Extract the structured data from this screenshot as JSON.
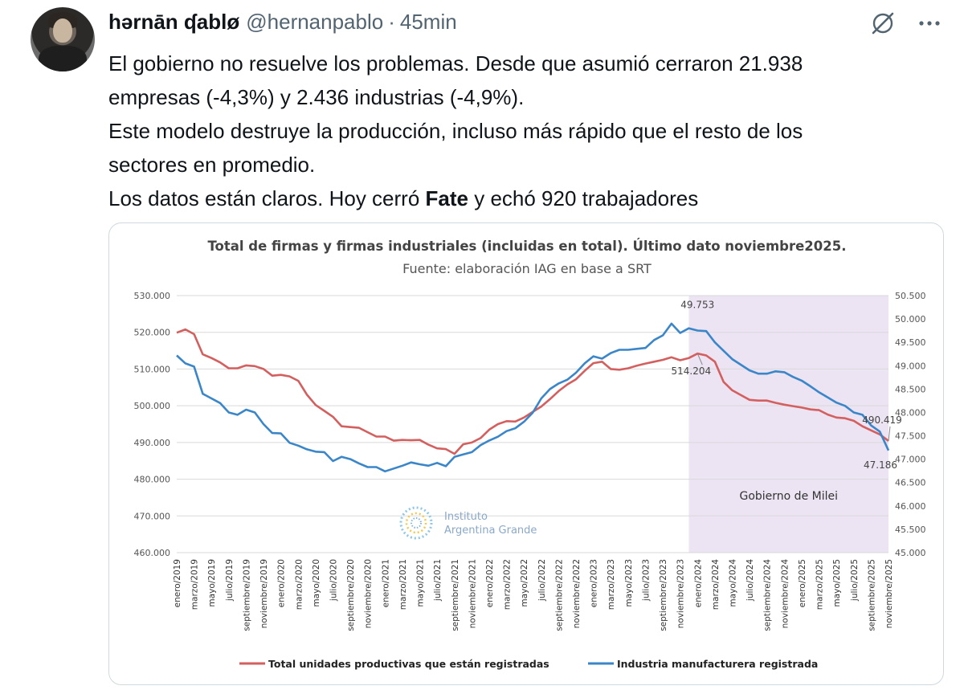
{
  "tweet": {
    "author_name": "hərnān ʠablø",
    "handle": "@hernanpablo",
    "separator": "·",
    "time": "45min",
    "text_lines": [
      "El gobierno no resuelve los problemas. Desde que asumió cerraron 21.938",
      "empresas (-4,3%) y 2.436 industrias (-4,9%).",
      "Este modelo destruye la producción, incluso más rápido que el resto de los",
      "sectores en promedio."
    ],
    "last_line_before": "Los datos están claros. Hoy cerró ",
    "last_line_bold": "Fate",
    "last_line_after": " y echó 920 trabajadores"
  },
  "icons": {
    "grok": "grok-slash-icon",
    "more": "more-dots-icon",
    "avatar": "avatar"
  },
  "colors": {
    "red_series": "#d35f5f",
    "blue_series": "#3a86c8",
    "shade": "#ece3f3",
    "grid": "#d9d9d9"
  },
  "chart_data": {
    "type": "line",
    "title": "Total de firmas y firmas industriales (incluidas en total). Último dato noviembre2025.",
    "subtitle": "Fuente: elaboración IAG en base a SRT",
    "watermark_line1": "Instituto",
    "watermark_line2": "Argentina Grande",
    "shaded_region_label": "Gobierno de Milei",
    "shaded_from_index": 59,
    "y_left": {
      "min": 460000,
      "max": 530000,
      "ticks": [
        "460.000",
        "470.000",
        "480.000",
        "490.000",
        "500.000",
        "510.000",
        "520.000",
        "530.000"
      ]
    },
    "y_right": {
      "min": 45000,
      "max": 50500,
      "ticks": [
        "45.000",
        "45.500",
        "46.000",
        "46.500",
        "47.000",
        "47.500",
        "48.000",
        "48.500",
        "49.000",
        "49.500",
        "50.000",
        "50.500"
      ]
    },
    "x_tick_labels": [
      "enero/2019",
      "marzo/2019",
      "mayo/2019",
      "julio/2019",
      "septiembre/2019",
      "noviembre/2019",
      "enero/2020",
      "marzo/2020",
      "mayo/2020",
      "julio/2020",
      "septiembre/2020",
      "noviembre/2020",
      "enero/2021",
      "marzo/2021",
      "mayo/2021",
      "julio/2021",
      "septiembre/2021",
      "noviembre/2021",
      "enero/2022",
      "marzo/2022",
      "mayo/2022",
      "julio/2022",
      "septiembre/2022",
      "noviembre/2022",
      "enero/2023",
      "marzo/2023",
      "mayo/2023",
      "julio/2023",
      "septiembre/2023",
      "noviembre/2023",
      "enero/2024",
      "marzo/2024",
      "mayo/2024",
      "julio/2024",
      "septiembre/2024",
      "noviembre/2024",
      "enero/2025",
      "marzo/2025",
      "mayo/2025",
      "julio/2025",
      "septiembre/2025",
      "noviembre/2025"
    ],
    "annotations": [
      {
        "text": "49.753",
        "series": 1,
        "index": 60
      },
      {
        "text": "514.204",
        "series": 0,
        "index": 60
      },
      {
        "text": "490.419",
        "series": 0,
        "index": 82
      },
      {
        "text": "47.186",
        "series": 1,
        "index": 82
      }
    ],
    "series": [
      {
        "name": "Total unidades productivas que están registradas",
        "axis": "left",
        "values": [
          519900,
          520800,
          519500,
          514000,
          513000,
          511800,
          510200,
          510200,
          511000,
          510800,
          510000,
          508200,
          508400,
          508000,
          506800,
          503000,
          500200,
          498600,
          497000,
          494400,
          494200,
          494000,
          492800,
          491600,
          491600,
          490500,
          490700,
          490600,
          490700,
          489400,
          488400,
          488200,
          486900,
          489500,
          490000,
          491200,
          493500,
          495000,
          495800,
          495700,
          496800,
          498300,
          499800,
          501800,
          504000,
          505800,
          507200,
          509500,
          511600,
          512000,
          510000,
          509800,
          510200,
          510900,
          511500,
          512000,
          512500,
          513200,
          512400,
          513000,
          514204,
          513700,
          512000,
          506500,
          504200,
          502900,
          501600,
          501400,
          501400,
          500800,
          500300,
          499900,
          499500,
          499000,
          498800,
          497600,
          496800,
          496600,
          495900,
          494400,
          493300,
          492200,
          490419
        ]
      },
      {
        "name": "Industria manufacturera registrada",
        "axis": "right",
        "values": [
          49220,
          49050,
          48980,
          48400,
          48300,
          48200,
          48000,
          47950,
          48060,
          48000,
          47750,
          47560,
          47550,
          47350,
          47290,
          47210,
          47160,
          47150,
          46960,
          47050,
          47000,
          46910,
          46830,
          46830,
          46740,
          46800,
          46860,
          46930,
          46890,
          46860,
          46920,
          46850,
          47050,
          47100,
          47150,
          47300,
          47400,
          47480,
          47600,
          47660,
          47800,
          47990,
          48300,
          48500,
          48620,
          48700,
          48850,
          49050,
          49200,
          49150,
          49270,
          49340,
          49340,
          49360,
          49380,
          49550,
          49650,
          49900,
          49700,
          49800,
          49753,
          49740,
          49500,
          49320,
          49140,
          49020,
          48900,
          48830,
          48830,
          48880,
          48860,
          48760,
          48680,
          48560,
          48430,
          48320,
          48210,
          48140,
          48000,
          47950,
          47720,
          47590,
          47186
        ]
      }
    ]
  }
}
